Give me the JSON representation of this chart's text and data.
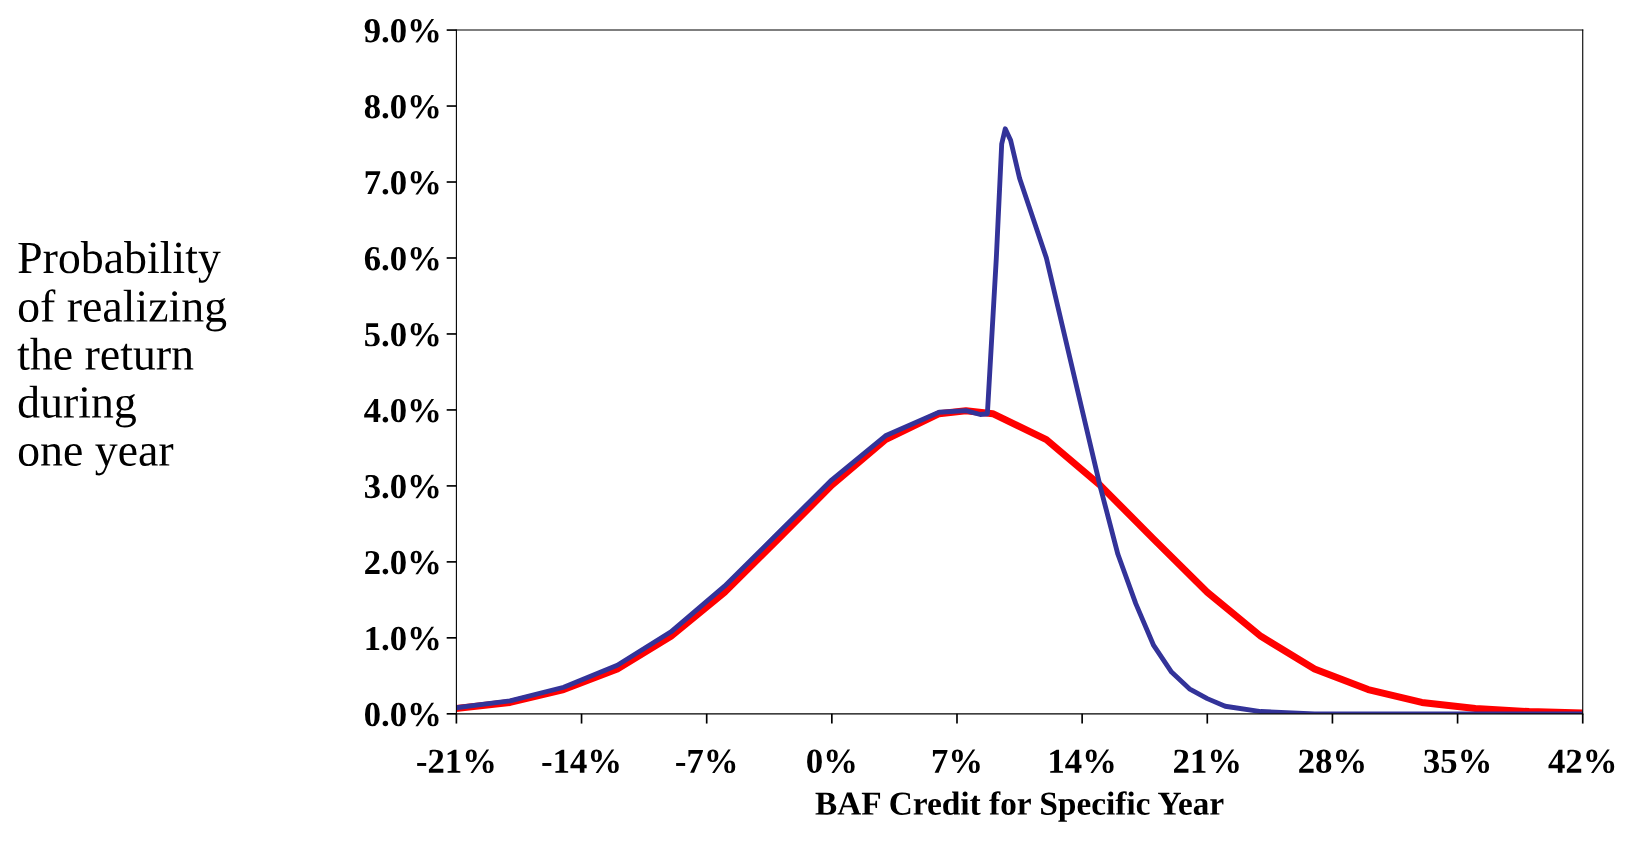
{
  "chart_data": {
    "type": "line",
    "xlabel": "BAF Credit for Specific Year",
    "ylabel": "Probability\nof realizing\nthe return\nduring\none year",
    "xlim": [
      -21,
      42
    ],
    "xticks": [
      {
        "value": -21,
        "label": "-21%"
      },
      {
        "value": -14,
        "label": "-14%"
      },
      {
        "value": -7,
        "label": "-7%"
      },
      {
        "value": 0,
        "label": "0%"
      },
      {
        "value": 7,
        "label": "7%"
      },
      {
        "value": 14,
        "label": "14%"
      },
      {
        "value": 21,
        "label": "21%"
      },
      {
        "value": 28,
        "label": "28%"
      },
      {
        "value": 35,
        "label": "35%"
      },
      {
        "value": 42,
        "label": "42%"
      }
    ],
    "ylim": [
      0,
      9
    ],
    "yticks": [
      {
        "value": 0,
        "label": "0.0%"
      },
      {
        "value": 1,
        "label": "1.0%"
      },
      {
        "value": 2,
        "label": "2.0%"
      },
      {
        "value": 3,
        "label": "3.0%"
      },
      {
        "value": 4,
        "label": "4.0%"
      },
      {
        "value": 5,
        "label": "5.0%"
      },
      {
        "value": 6,
        "label": "6.0%"
      },
      {
        "value": 7,
        "label": "7.0%"
      },
      {
        "value": 8,
        "label": "8.0%"
      },
      {
        "value": 9,
        "label": "9.0%"
      }
    ],
    "grid": false,
    "legend": false,
    "marker": "none",
    "line_style": "solid",
    "series": [
      {
        "color": "#ff0000",
        "x": [
          -21,
          -18,
          -15,
          -12,
          -9,
          -6,
          -3,
          0,
          3,
          6,
          7.5,
          9,
          12,
          15,
          18,
          21,
          24,
          27,
          30,
          33,
          36,
          39,
          42
        ],
        "values": [
          0.07,
          0.15,
          0.32,
          0.59,
          1.02,
          1.6,
          2.3,
          3.01,
          3.61,
          3.95,
          3.99,
          3.95,
          3.61,
          3.01,
          2.3,
          1.6,
          1.02,
          0.59,
          0.32,
          0.15,
          0.07,
          0.03,
          0.01
        ]
      },
      {
        "color": "#333399",
        "x": [
          -21,
          -18,
          -15,
          -12,
          -9,
          -6,
          -3,
          0,
          3,
          6,
          7.5,
          8.3,
          8.7,
          9.2,
          9.5,
          9.7,
          10,
          10.5,
          12,
          13,
          14,
          15,
          16,
          17,
          18,
          19,
          20,
          21,
          22,
          24,
          27,
          42
        ],
        "values": [
          0.08,
          0.17,
          0.35,
          0.64,
          1.08,
          1.68,
          2.38,
          3.08,
          3.66,
          3.97,
          3.99,
          3.94,
          3.95,
          6.0,
          7.5,
          7.7,
          7.55,
          7.05,
          6.0,
          5.0,
          4.0,
          3.0,
          2.1,
          1.45,
          0.9,
          0.55,
          0.33,
          0.2,
          0.1,
          0.03,
          0.0,
          0.0
        ]
      }
    ]
  }
}
